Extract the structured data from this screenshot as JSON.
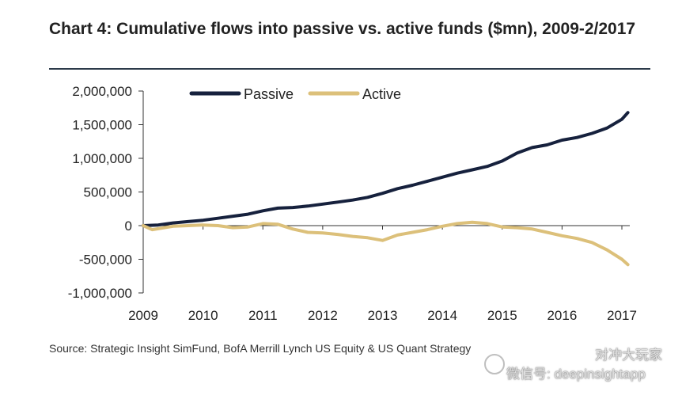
{
  "chart_data": {
    "type": "line",
    "title": "Chart 4: Cumulative flows into passive vs. active funds ($mn), 2009-2/2017",
    "xlabel": "",
    "ylabel": "",
    "x_ticks": [
      "2009",
      "2010",
      "2011",
      "2012",
      "2013",
      "2014",
      "2015",
      "2016",
      "2017"
    ],
    "y_ticks": [
      {
        "value": 2000000,
        "label": "2,000,000"
      },
      {
        "value": 1500000,
        "label": "1,500,000"
      },
      {
        "value": 1000000,
        "label": "1,000,000"
      },
      {
        "value": 500000,
        "label": "500,000"
      },
      {
        "value": 0,
        "label": "0"
      },
      {
        "value": -500000,
        "label": "-500,000"
      },
      {
        "value": -1000000,
        "label": "-1,000,000"
      }
    ],
    "xlim": [
      2009,
      2017.1
    ],
    "ylim": [
      -1000000,
      2000000
    ],
    "legend_position": "top",
    "series": [
      {
        "name": "Passive",
        "color": "#16213d",
        "x": [
          2009,
          2009.25,
          2009.5,
          2009.75,
          2010,
          2010.25,
          2010.5,
          2010.75,
          2011,
          2011.25,
          2011.5,
          2011.75,
          2012,
          2012.25,
          2012.5,
          2012.75,
          2013,
          2013.25,
          2013.5,
          2013.75,
          2014,
          2014.25,
          2014.5,
          2014.75,
          2015,
          2015.25,
          2015.5,
          2015.75,
          2016,
          2016.25,
          2016.5,
          2016.75,
          2017,
          2017.1
        ],
        "values": [
          0,
          10000,
          40000,
          60000,
          80000,
          110000,
          140000,
          170000,
          220000,
          260000,
          270000,
          290000,
          320000,
          350000,
          380000,
          420000,
          480000,
          550000,
          600000,
          660000,
          720000,
          780000,
          830000,
          880000,
          960000,
          1080000,
          1160000,
          1200000,
          1270000,
          1310000,
          1370000,
          1450000,
          1580000,
          1680000
        ]
      },
      {
        "name": "Active",
        "color": "#dcc07a",
        "x": [
          2009,
          2009.15,
          2009.5,
          2009.75,
          2010,
          2010.25,
          2010.5,
          2010.75,
          2011,
          2011.25,
          2011.5,
          2011.75,
          2012,
          2012.25,
          2012.5,
          2012.75,
          2013,
          2013.25,
          2013.5,
          2013.75,
          2014,
          2014.25,
          2014.5,
          2014.75,
          2015,
          2015.25,
          2015.5,
          2015.75,
          2016,
          2016.25,
          2016.5,
          2016.75,
          2017,
          2017.1
        ],
        "values": [
          0,
          -60000,
          -10000,
          0,
          10000,
          0,
          -30000,
          -20000,
          30000,
          20000,
          -50000,
          -100000,
          -110000,
          -130000,
          -160000,
          -180000,
          -220000,
          -140000,
          -100000,
          -60000,
          -10000,
          30000,
          50000,
          30000,
          -20000,
          -30000,
          -50000,
          -100000,
          -150000,
          -190000,
          -250000,
          -360000,
          -500000,
          -580000
        ]
      }
    ]
  },
  "source": "Source: Strategic Insight SimFund, BofA Merrill Lynch US Equity & US Quant Strategy",
  "watermark": {
    "name": "对冲大玩家",
    "id": "微信号: deepinsightapp"
  }
}
